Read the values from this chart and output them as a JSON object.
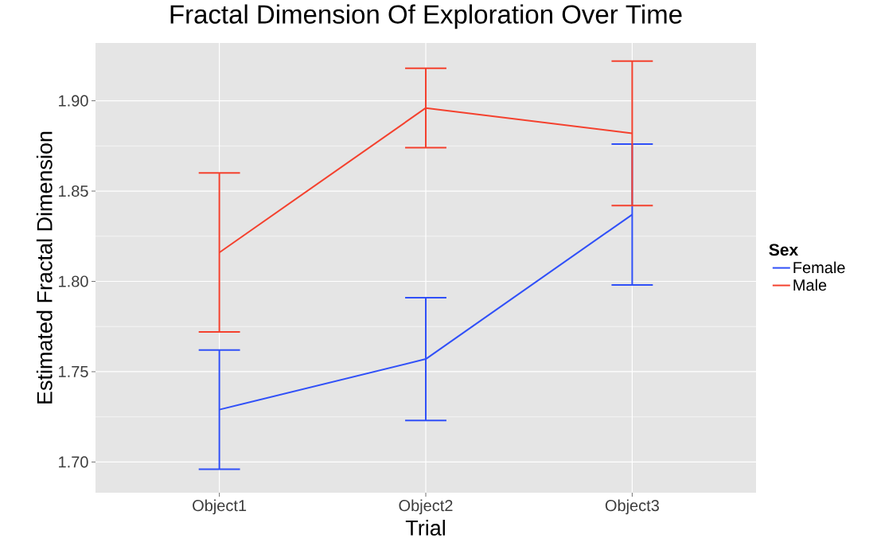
{
  "chart_data": {
    "type": "line",
    "title": "Fractal Dimension Of Exploration Over Time",
    "xlabel": "Trial",
    "ylabel": "Estimated Fractal Dimension",
    "legend_title": "Sex",
    "categories": [
      "Object1",
      "Object2",
      "Object3"
    ],
    "series": [
      {
        "name": "Female",
        "color": "#3050f8",
        "values": [
          1.729,
          1.757,
          1.837
        ],
        "errors": [
          0.033,
          0.034,
          0.039
        ]
      },
      {
        "name": "Male",
        "color": "#f4412e",
        "values": [
          1.816,
          1.896,
          1.882
        ],
        "errors": [
          0.044,
          0.022,
          0.04
        ]
      }
    ],
    "ylim": [
      1.683,
      1.932
    ],
    "yticks": [
      {
        "value": 1.7,
        "label": "1.70"
      },
      {
        "value": 1.75,
        "label": "1.75"
      },
      {
        "value": 1.8,
        "label": "1.80"
      },
      {
        "value": 1.85,
        "label": "1.85"
      },
      {
        "value": 1.9,
        "label": "1.90"
      }
    ],
    "grid": true,
    "legend": "right",
    "marker": "none",
    "line_style": "solid"
  }
}
